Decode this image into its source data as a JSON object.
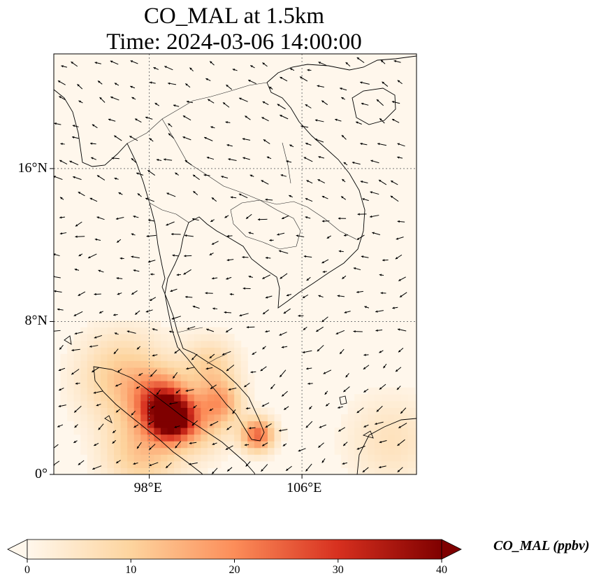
{
  "title_line1": "CO_MAL at 1.5km",
  "title_line2": "Time: 2024-03-06 14:00:00",
  "map": {
    "lon_range": [
      93,
      112
    ],
    "lat_range": [
      0,
      22
    ],
    "x_ticks": [
      {
        "lon": 98,
        "label": "98°E"
      },
      {
        "lon": 106,
        "label": "106°E"
      }
    ],
    "y_ticks": [
      {
        "lat": 16,
        "label": "16°N"
      },
      {
        "lat": 8,
        "label": "8°N"
      },
      {
        "lat": 0,
        "label": "0°"
      }
    ],
    "gridlines": true
  },
  "colorbar": {
    "label": "CO_MAL (ppbv)",
    "ticks": [
      {
        "value": 0,
        "label": "0"
      },
      {
        "value": 10,
        "label": "10"
      },
      {
        "value": 20,
        "label": "20"
      },
      {
        "value": 30,
        "label": "30"
      },
      {
        "value": 40,
        "label": "40"
      }
    ],
    "range": [
      0,
      40
    ],
    "colormap": "OrRd",
    "colors": [
      "#fff7ec",
      "#fdd49e",
      "#fc8d59",
      "#d7301f",
      "#7f0000"
    ]
  },
  "hotspots": [
    {
      "lon": 99.0,
      "lat": 2.8,
      "value": 40,
      "spread": 0.8
    },
    {
      "lon": 98.4,
      "lat": 3.7,
      "value": 22,
      "spread": 1.0
    },
    {
      "lon": 96.5,
      "lat": 4.9,
      "value": 12,
      "spread": 1.6
    },
    {
      "lon": 97.5,
      "lat": 1.0,
      "value": 12,
      "spread": 1.4
    },
    {
      "lon": 103.5,
      "lat": 1.9,
      "value": 24,
      "spread": 0.6
    },
    {
      "lon": 101.5,
      "lat": 3.6,
      "value": 16,
      "spread": 0.8
    },
    {
      "lon": 101.0,
      "lat": 5.5,
      "value": 10,
      "spread": 1.0
    },
    {
      "lon": 100.5,
      "lat": 2.2,
      "value": 9,
      "spread": 1.0
    },
    {
      "lon": 110.5,
      "lat": 1.6,
      "value": 6,
      "spread": 1.6
    }
  ]
}
